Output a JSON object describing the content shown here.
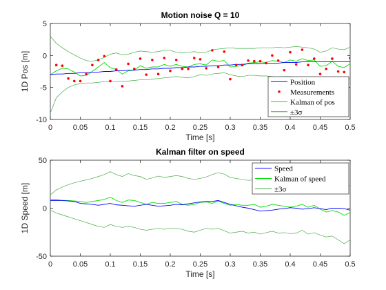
{
  "chart_data": [
    {
      "type": "line",
      "title": "Motion noise Q = 10",
      "xlabel": "Time [s]",
      "ylabel": "1D Pos [m]",
      "xlim": [
        0,
        0.5
      ],
      "ylim": [
        -10,
        5
      ],
      "xticks": [
        "0",
        "0.05",
        "0.1",
        "0.15",
        "0.2",
        "0.25",
        "0.3",
        "0.35",
        "0.4",
        "0.45",
        "0.5"
      ],
      "yticks": [
        "-10",
        "-5",
        "0",
        "5"
      ],
      "grid": false,
      "legend_position": "bottom-right",
      "x": [
        0,
        0.01,
        0.02,
        0.03,
        0.04,
        0.05,
        0.06,
        0.07,
        0.08,
        0.09,
        0.1,
        0.11,
        0.12,
        0.13,
        0.14,
        0.15,
        0.16,
        0.17,
        0.18,
        0.19,
        0.2,
        0.21,
        0.22,
        0.23,
        0.24,
        0.25,
        0.26,
        0.27,
        0.28,
        0.29,
        0.3,
        0.31,
        0.32,
        0.33,
        0.34,
        0.35,
        0.36,
        0.37,
        0.38,
        0.39,
        0.4,
        0.41,
        0.42,
        0.43,
        0.44,
        0.45,
        0.46,
        0.47,
        0.48,
        0.49,
        0.5
      ],
      "series": [
        {
          "name": "Position",
          "style": "line",
          "color": "#0000ff",
          "values": [
            -3.0,
            -2.9,
            -2.9,
            -2.8,
            -2.8,
            -2.7,
            -2.7,
            -2.6,
            -2.6,
            -2.5,
            -2.5,
            -2.4,
            -2.4,
            -2.3,
            -2.3,
            -2.2,
            -2.2,
            -2.1,
            -2.1,
            -2.0,
            -2.0,
            -1.9,
            -1.9,
            -1.8,
            -1.8,
            -1.7,
            -1.7,
            -1.6,
            -1.6,
            -1.5,
            -1.5,
            -1.4,
            -1.4,
            -1.3,
            -1.3,
            -1.3,
            -1.2,
            -1.2,
            -1.2,
            -1.1,
            -1.1,
            -1.1,
            -1.0,
            -1.0,
            -1.0,
            -1.0,
            -1.0,
            -1.0,
            -1.0,
            -1.0,
            -1.0
          ]
        },
        {
          "name": "Measurements",
          "style": "points",
          "color": "#ff0000",
          "x": [
            0.01,
            0.02,
            0.03,
            0.04,
            0.05,
            0.06,
            0.07,
            0.08,
            0.09,
            0.1,
            0.11,
            0.12,
            0.13,
            0.14,
            0.15,
            0.16,
            0.17,
            0.18,
            0.19,
            0.2,
            0.21,
            0.22,
            0.23,
            0.24,
            0.25,
            0.26,
            0.27,
            0.28,
            0.29,
            0.3,
            0.31,
            0.32,
            0.33,
            0.34,
            0.35,
            0.36,
            0.37,
            0.38,
            0.39,
            0.4,
            0.41,
            0.42,
            0.43,
            0.44,
            0.45,
            0.46,
            0.47,
            0.48,
            0.49,
            0.5
          ],
          "values": [
            -1.5,
            -1.6,
            -3.6,
            -4.0,
            -4.0,
            -2.9,
            -1.5,
            -0.7,
            -0.1,
            -4.0,
            -2.2,
            -4.8,
            -1.3,
            -2.1,
            -0.5,
            -3.0,
            -0.7,
            -2.9,
            -0.4,
            -2.4,
            -0.7,
            -2.1,
            -2.1,
            -0.4,
            -0.6,
            -2.0,
            0.8,
            -1.8,
            0.6,
            -3.7,
            -1.5,
            -1.5,
            -0.8,
            -0.9,
            -0.9,
            -1.2,
            0.0,
            -0.8,
            -2.3,
            0.5,
            -1.4,
            0.9,
            -1.5,
            -0.5,
            -2.9,
            -2.1,
            -0.5,
            -2.5,
            -2.6,
            -0.4
          ]
        },
        {
          "name": "Kalman of pos",
          "style": "line",
          "color": "#00dd00",
          "values": [
            -3.0,
            -2.4,
            -2.0,
            -2.1,
            -2.6,
            -3.2,
            -3.1,
            -2.5,
            -1.8,
            -1.1,
            -1.9,
            -2.2,
            -2.9,
            -2.4,
            -2.3,
            -1.6,
            -2.0,
            -1.8,
            -1.8,
            -1.4,
            -1.7,
            -1.4,
            -1.7,
            -1.8,
            -1.4,
            -1.3,
            -1.5,
            -0.7,
            -0.9,
            -0.8,
            -1.8,
            -1.7,
            -1.6,
            -1.2,
            -1.1,
            -1.0,
            -1.1,
            -0.8,
            -0.9,
            -1.1,
            -0.7,
            -0.9,
            -0.5,
            -0.8,
            -0.7,
            -1.7,
            -1.6,
            -0.9,
            -1.7,
            -1.9,
            -1.3
          ]
        },
        {
          "name": "±3σ",
          "style": "line",
          "color": "#44aa44",
          "values": [
            3.0,
            1.9,
            1.2,
            0.6,
            0.1,
            -0.4,
            -0.8,
            -0.9,
            -0.7,
            -0.3,
            0.2,
            0.4,
            0.1,
            0.2,
            0.5,
            0.7,
            0.6,
            0.5,
            0.6,
            0.8,
            0.8,
            0.5,
            0.4,
            0.5,
            0.6,
            0.4,
            0.5,
            0.9,
            1.0,
            1.1,
            1.2,
            1.1,
            1.1,
            1.1,
            1.1,
            1.2,
            1.2,
            1.2,
            1.3,
            1.2,
            1.3,
            1.4,
            1.3,
            1.2,
            1.0,
            0.5,
            0.7,
            1.2,
            1.0,
            0.9,
            1.3
          ]
        },
        {
          "name": "",
          "style": "line",
          "color": "#44aa44",
          "values": [
            -9.0,
            -6.6,
            -5.7,
            -5.0,
            -4.6,
            -4.4,
            -4.3,
            -4.3,
            -4.2,
            -4.1,
            -4.1,
            -4.1,
            -4.0,
            -4.0,
            -3.9,
            -3.8,
            -3.8,
            -3.7,
            -3.6,
            -3.5,
            -3.4,
            -3.3,
            -3.4,
            -3.5,
            -3.3,
            -3.0,
            -3.1,
            -2.9,
            -2.8,
            -2.7,
            -3.0,
            -3.2,
            -3.3,
            -3.1,
            -3.1,
            -3.2,
            -3.2,
            -3.3,
            -3.4,
            -3.3,
            -3.3,
            -3.4,
            -3.4,
            -3.5,
            -3.3,
            -3.9,
            -3.8,
            -3.5,
            -3.6,
            -3.8,
            -3.6
          ]
        }
      ]
    },
    {
      "type": "line",
      "title": "Kalman filter on speed",
      "xlabel": "Time [s]",
      "ylabel": "1D Speed [m]",
      "xlim": [
        0,
        0.5
      ],
      "ylim": [
        -50,
        50
      ],
      "xticks": [
        "0",
        "0.05",
        "0.1",
        "0.15",
        "0.2",
        "0.25",
        "0.3",
        "0.35",
        "0.4",
        "0.45",
        "0.5"
      ],
      "yticks": [
        "-50",
        "0",
        "50"
      ],
      "grid": false,
      "legend_position": "top-right",
      "x": [
        0,
        0.01,
        0.02,
        0.03,
        0.04,
        0.05,
        0.06,
        0.07,
        0.08,
        0.09,
        0.1,
        0.11,
        0.12,
        0.13,
        0.14,
        0.15,
        0.16,
        0.17,
        0.18,
        0.19,
        0.2,
        0.21,
        0.22,
        0.23,
        0.24,
        0.25,
        0.26,
        0.27,
        0.28,
        0.29,
        0.3,
        0.31,
        0.32,
        0.33,
        0.34,
        0.35,
        0.36,
        0.37,
        0.38,
        0.39,
        0.4,
        0.41,
        0.42,
        0.43,
        0.44,
        0.45,
        0.46,
        0.47,
        0.48,
        0.49,
        0.5
      ],
      "series": [
        {
          "name": "Speed",
          "style": "line",
          "color": "#0000ff",
          "values": [
            8,
            8,
            8,
            7.5,
            7,
            5,
            4.5,
            4,
            3,
            4,
            5,
            3.5,
            3,
            2.5,
            2,
            3,
            4,
            3,
            2,
            2.5,
            3,
            4,
            3.5,
            4.5,
            5.5,
            6.5,
            7,
            7,
            8,
            6,
            4,
            2.5,
            1,
            0,
            -1.5,
            -3,
            -2.5,
            -2,
            -1,
            -0.5,
            0.5,
            0,
            -1,
            -0.5,
            0.5,
            -0.5,
            -1.5,
            0,
            0,
            -0.5,
            -2
          ]
        },
        {
          "name": "Kalman of speed",
          "style": "line",
          "color": "#00dd00",
          "values": [
            9,
            9,
            8,
            8,
            7.5,
            7,
            6,
            7,
            8,
            9,
            11.5,
            8,
            6,
            8.5,
            8,
            6,
            4,
            6,
            5,
            5,
            6,
            7,
            4,
            3,
            4,
            6,
            6.5,
            5,
            7.5,
            5,
            3,
            4,
            3,
            3,
            4,
            1,
            2,
            4,
            3,
            2,
            1,
            2,
            4,
            1,
            3,
            -1,
            -4,
            -2.5,
            -4,
            -7.5,
            -4.5
          ]
        },
        {
          "name": "±3σ",
          "style": "line",
          "color": "#44aa44",
          "values": [
            14,
            19,
            22,
            24.5,
            26.5,
            28,
            29.5,
            31,
            33,
            35,
            38,
            35,
            33,
            36,
            34,
            33,
            30,
            31.5,
            33.5,
            32,
            33,
            34,
            33,
            31,
            30,
            31,
            32.5,
            35,
            37,
            35.5,
            32,
            31,
            30,
            29,
            29.5,
            28,
            29,
            30,
            28,
            27,
            26,
            27.5,
            28,
            27,
            26.5,
            23,
            19,
            21,
            19,
            19.5,
            24
          ]
        },
        {
          "name": "",
          "style": "line",
          "color": "#44aa44",
          "values": [
            -2,
            -5,
            -7,
            -9,
            -11,
            -13,
            -15,
            -17,
            -19,
            -20,
            -17,
            -19,
            -20,
            -19,
            -20,
            -22,
            -23,
            -22,
            -21,
            -22,
            -21,
            -21,
            -22,
            -24,
            -25,
            -23,
            -21,
            -22,
            -21,
            -23.5,
            -26,
            -25,
            -24,
            -26,
            -25,
            -27,
            -25.5,
            -24,
            -26,
            -25.5,
            -26.5,
            -26,
            -23,
            -27,
            -25.5,
            -28,
            -30,
            -29,
            -33,
            -37,
            -33
          ]
        }
      ]
    }
  ]
}
